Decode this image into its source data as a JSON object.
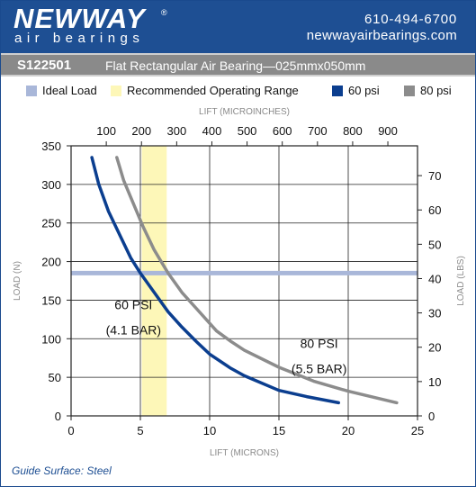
{
  "header": {
    "brand_top": "NEWWAY",
    "brand_reg": "®",
    "brand_sub": "air bearings",
    "phone": "610-494-6700",
    "website": "newwayairbearings.com"
  },
  "titlebar": {
    "part_no": "S122501",
    "description": "Flat Rectangular Air Bearing—025mmx050mm"
  },
  "legend": {
    "items": [
      {
        "label": "Ideal Load",
        "color": "#a9b7d9"
      },
      {
        "label": "Recommended Operating Range",
        "color": "#fdf7b8"
      },
      {
        "label": "60 psi",
        "color": "#0b3e8f"
      },
      {
        "label": "80 psi",
        "color": "#8c8c8c"
      }
    ]
  },
  "footer": {
    "text": "Guide Surface: Steel"
  },
  "chart_data": {
    "type": "line",
    "xlabel": "LIFT (MICRONS)",
    "x2label": "LIFT (MICROINCHES)",
    "ylabel": "LOAD (N)",
    "y2label": "LOAD (LBS)",
    "xlim": [
      0,
      25
    ],
    "ylim": [
      0,
      350
    ],
    "x2lim": [
      0,
      984.25
    ],
    "y2lim": [
      0,
      78.68
    ],
    "x_ticks": [
      0,
      5,
      10,
      15,
      20,
      25
    ],
    "y_ticks": [
      0,
      50,
      100,
      150,
      200,
      250,
      300,
      350
    ],
    "x2_ticks": [
      100,
      200,
      300,
      400,
      500,
      600,
      700,
      800,
      900
    ],
    "y2_ticks": [
      0,
      10,
      20,
      30,
      40,
      50,
      60,
      70
    ],
    "grid": true,
    "ideal_load": 185,
    "operating_range": [
      5.1,
      6.9
    ],
    "series": [
      {
        "name": "60 psi",
        "color": "#0b3e8f",
        "x": [
          1.5,
          2.0,
          2.7,
          3.5,
          4.3,
          5.0,
          6.0,
          7.0,
          8.0,
          9.0,
          10.0,
          11.5,
          12.5,
          15.0,
          17.0,
          19.3
        ],
        "y": [
          335,
          300,
          265,
          235,
          205,
          185,
          160,
          135,
          115,
          97,
          80,
          62,
          52,
          33,
          25,
          17
        ]
      },
      {
        "name": "80 psi",
        "color": "#8c8c8c",
        "x": [
          3.3,
          3.8,
          4.5,
          5.2,
          6.0,
          7.0,
          8.0,
          9.0,
          10.5,
          11.5,
          12.5,
          15.0,
          17.5,
          20.0,
          23.5
        ],
        "y": [
          335,
          305,
          275,
          245,
          215,
          185,
          160,
          140,
          110,
          97,
          85,
          63,
          45,
          32,
          17
        ]
      }
    ],
    "annotations": [
      {
        "line1": "60 PSI",
        "line2": "(4.1 BAR)",
        "x": 4.5,
        "y": 138
      },
      {
        "line1": "80 PSI",
        "line2": "(5.5 BAR)",
        "x": 17.9,
        "y": 88
      }
    ]
  }
}
